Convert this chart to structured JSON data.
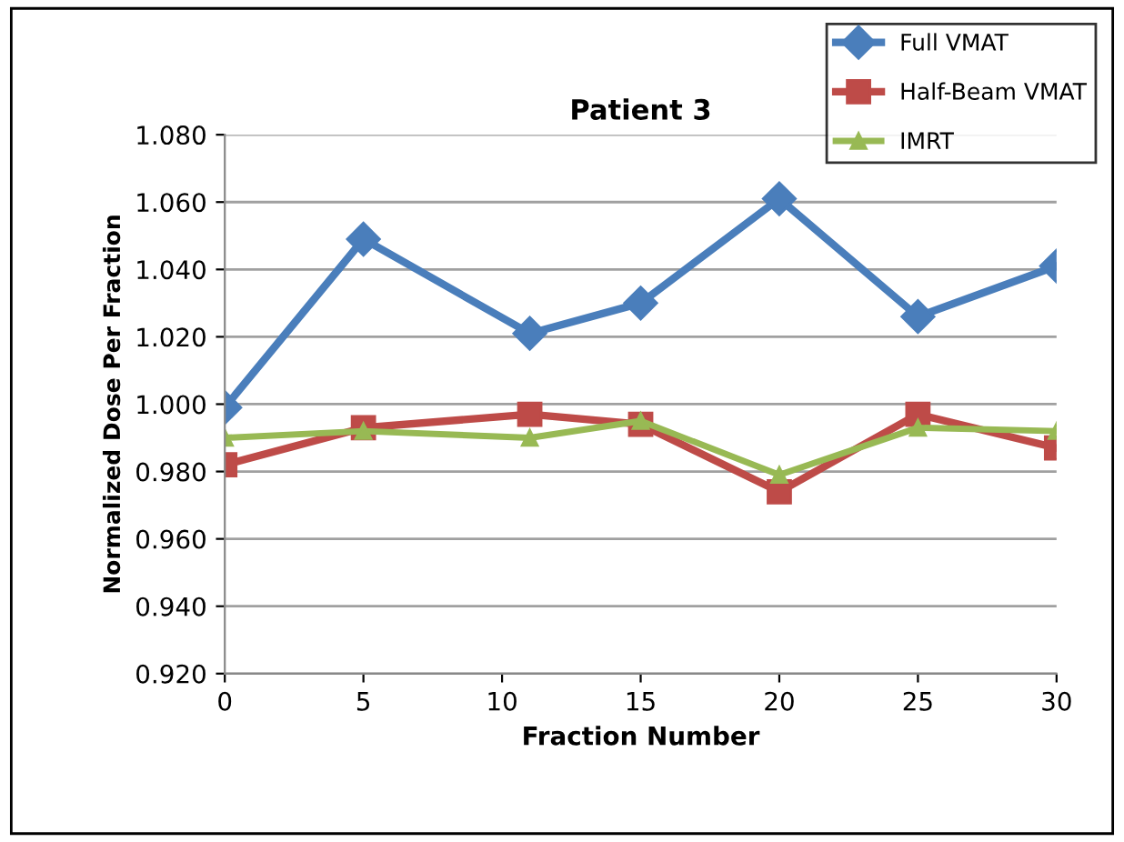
{
  "chart_data": {
    "type": "line",
    "title": "Patient 3",
    "xlabel": "Fraction Number",
    "ylabel": "Normalized Dose Per Fraction",
    "x": [
      0,
      5,
      11,
      15,
      20,
      25,
      30
    ],
    "xlim": [
      0,
      30
    ],
    "xticks": [
      0,
      5,
      10,
      15,
      20,
      25,
      30
    ],
    "ylim": [
      0.92,
      1.08
    ],
    "yticks": [
      {
        "value": 0.92,
        "label": "0.920"
      },
      {
        "value": 0.94,
        "label": "0.940"
      },
      {
        "value": 0.96,
        "label": "0.960"
      },
      {
        "value": 0.98,
        "label": "0.980"
      },
      {
        "value": 1.0,
        "label": "1.000"
      },
      {
        "value": 1.02,
        "label": "1.020"
      },
      {
        "value": 1.04,
        "label": "1.040"
      },
      {
        "value": 1.06,
        "label": "1.060"
      },
      {
        "value": 1.08,
        "label": "1.080"
      }
    ],
    "grid": "y",
    "legend": "top right",
    "series": [
      {
        "name": "Full VMAT",
        "color": "#4a7ebb",
        "marker": "diamond",
        "values": [
          0.999,
          1.049,
          1.021,
          1.03,
          1.061,
          1.026,
          1.041
        ]
      },
      {
        "name": "Half-Beam VMAT",
        "color": "#be4b48",
        "marker": "square",
        "values": [
          0.982,
          0.993,
          0.997,
          0.994,
          0.974,
          0.997,
          0.987
        ]
      },
      {
        "name": "IMRT",
        "color": "#98b954",
        "marker": "triangle",
        "values": [
          0.99,
          0.992,
          0.99,
          0.995,
          0.979,
          0.993,
          0.992
        ]
      }
    ]
  }
}
